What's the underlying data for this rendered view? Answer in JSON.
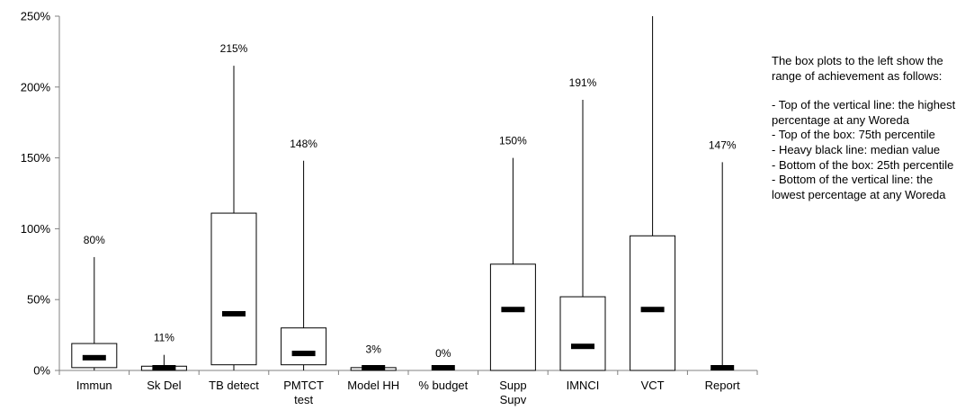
{
  "chart_data": {
    "type": "boxplot",
    "categories": [
      "Immun",
      "Sk Del",
      "TB detect",
      "PMTCT test",
      "Model HH",
      "% budget",
      "Supp Supv",
      "IMNCI",
      "VCT",
      "Report"
    ],
    "yticks": [
      "0%",
      "50%",
      "100%",
      "150%",
      "200%",
      "250%"
    ],
    "ylim": [
      0,
      250
    ],
    "grid": false,
    "legend": "none",
    "boxes": [
      {
        "category": "Immun",
        "min": 0,
        "q1": 2,
        "median": 9,
        "q3": 19,
        "max": 80,
        "max_label": "80%"
      },
      {
        "category": "Sk Del",
        "min": 0,
        "q1": 0,
        "median": 1,
        "q3": 3,
        "max": 11,
        "max_label": "11%"
      },
      {
        "category": "TB detect",
        "min": 0,
        "q1": 4,
        "median": 40,
        "q3": 111,
        "max": 215,
        "max_label": "215%"
      },
      {
        "category": "PMTCT test",
        "min": 0,
        "q1": 4,
        "median": 12,
        "q3": 30,
        "max": 148,
        "max_label": "148%"
      },
      {
        "category": "Model HH",
        "min": 0,
        "q1": 0,
        "median": 0,
        "q3": 2,
        "max": 3,
        "max_label": "3%"
      },
      {
        "category": "% budget",
        "min": 0,
        "q1": 0,
        "median": 0,
        "q3": 0,
        "max": 0,
        "max_label": "0%"
      },
      {
        "category": "Supp Supv",
        "min": 0,
        "q1": 0,
        "median": 43,
        "q3": 75,
        "max": 150,
        "max_label": "150%"
      },
      {
        "category": "IMNCI",
        "min": 0,
        "q1": 0,
        "median": 17,
        "q3": 52,
        "max": 191,
        "max_label": "191%"
      },
      {
        "category": "VCT",
        "min": 0,
        "q1": 0,
        "median": 43,
        "q3": 95,
        "max": 250,
        "max_label": ""
      },
      {
        "category": "Report",
        "min": 0,
        "q1": 0,
        "median": 0,
        "q3": 0,
        "max": 147,
        "max_label": "147%"
      }
    ]
  },
  "note": {
    "intro": "The box plots to the left show the range of achievement as follows:",
    "items": [
      "- Top of the vertical line: the highest percentage at any Woreda",
      "- Top of the box: 75th percentile",
      "- Heavy black line: median value",
      "- Bottom of the box: 25th percentile",
      "- Bottom of the vertical line: the lowest percentage at any Woreda"
    ]
  },
  "colors": {
    "axis": "#808080",
    "box_fill": "#ffffff",
    "box_stroke": "#000000",
    "median": "#000000"
  }
}
